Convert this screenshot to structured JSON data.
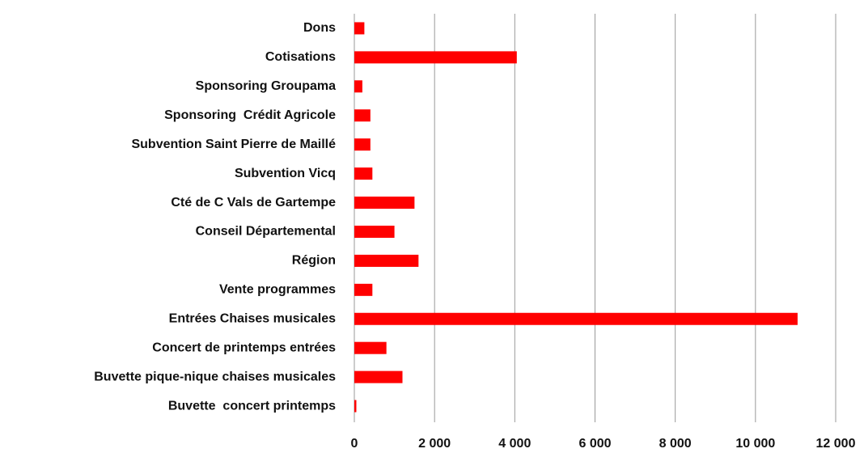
{
  "chart_data": {
    "type": "bar",
    "orientation": "horizontal",
    "categories": [
      "Dons",
      "Cotisations",
      "Sponsoring Groupama",
      "Sponsoring  Crédit Agricole",
      "Subvention Saint Pierre de Maillé",
      "Subvention Vicq",
      "Cté de C Vals de Gartempe",
      "Conseil Départemental",
      "Région",
      "Vente programmes",
      "Entrées Chaises musicales",
      "Concert de printemps entrées",
      "Buvette pique-nique chaises musicales",
      "Buvette  concert printemps"
    ],
    "values": [
      250,
      4050,
      200,
      400,
      400,
      450,
      1500,
      1000,
      1600,
      450,
      11050,
      800,
      1200,
      50
    ],
    "color": "#ff0000",
    "xlim": [
      0,
      12000
    ],
    "xticks": [
      0,
      {
        "value": 2000,
        "label": "2 000"
      },
      {
        "value": 4000,
        "label": "4 000"
      },
      {
        "value": 6000,
        "label": "6 000"
      },
      {
        "value": 8000,
        "label": "8 000"
      },
      {
        "value": 10000,
        "label": "10 000"
      },
      {
        "value": 12000,
        "label": "12 000"
      }
    ],
    "grid": true
  }
}
